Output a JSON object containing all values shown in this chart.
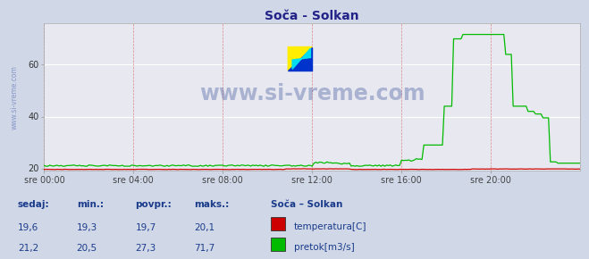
{
  "title": "Soča - Solkan",
  "background_color": "#d0d8e8",
  "plot_bg_color": "#e8e8f0",
  "grid_color_h": "#ffffff",
  "grid_color_v": "#dd8888",
  "xlim": [
    0,
    288
  ],
  "ylim": [
    19,
    76
  ],
  "yticks": [
    20,
    40,
    60
  ],
  "xtick_labels": [
    "sre 00:00",
    "sre 04:00",
    "sre 08:00",
    "sre 12:00",
    "sre 16:00",
    "sre 20:00"
  ],
  "xtick_positions": [
    0,
    48,
    96,
    144,
    192,
    240
  ],
  "temp_color": "#cc0000",
  "flow_color": "#00bb00",
  "watermark_text": "www.si-vreme.com",
  "watermark_color": "#1a3a8a",
  "legend_title": "Soča – Solkan",
  "legend_labels": [
    "temperatura[C]",
    "pretok[m3/s]"
  ],
  "legend_colors": [
    "#cc0000",
    "#00bb00"
  ],
  "table_headers": [
    "sedaj:",
    "min.:",
    "povpr.:",
    "maks.:"
  ],
  "table_row1": [
    "19,6",
    "19,3",
    "19,7",
    "20,1"
  ],
  "table_row2": [
    "21,2",
    "20,5",
    "27,3",
    "71,7"
  ],
  "table_color": "#1a3a8a",
  "ylabel_text": "www.si-vreme.com",
  "ylabel_color": "#8898c8"
}
